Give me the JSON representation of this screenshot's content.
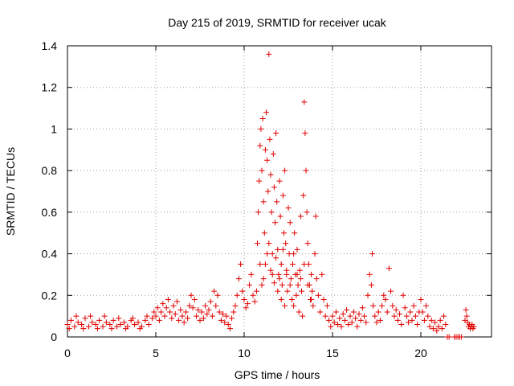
{
  "chart_data": {
    "type": "scatter",
    "title": "Day 215 of 2019, SRMTID for receiver ucak",
    "xlabel": "GPS time / hours",
    "ylabel": "SRMTID / TECUs",
    "xlim": [
      0,
      24
    ],
    "ylim": [
      0,
      1.4
    ],
    "xticks": [
      0,
      5,
      10,
      15,
      20
    ],
    "xtick_labels": [
      "0",
      "5",
      "10",
      "15",
      "20"
    ],
    "yticks": [
      0,
      0.2,
      0.4,
      0.6,
      0.8,
      1,
      1.2,
      1.4
    ],
    "ytick_labels": [
      "0",
      "0.2",
      "0.4",
      "0.6",
      "0.8",
      "1",
      "1.2",
      "1.4"
    ],
    "grid": true,
    "marker": "+",
    "series": [
      {
        "name": "SRMTID",
        "color": "#e00000",
        "points": [
          [
            0.0,
            0.06
          ],
          [
            0.2,
            0.08
          ],
          [
            0.4,
            0.05
          ],
          [
            0.6,
            0.07
          ],
          [
            0.8,
            0.06
          ],
          [
            1.0,
            0.09
          ],
          [
            1.2,
            0.05
          ],
          [
            1.4,
            0.07
          ],
          [
            1.6,
            0.06
          ],
          [
            1.8,
            0.08
          ],
          [
            2.0,
            0.05
          ],
          [
            2.2,
            0.07
          ],
          [
            2.4,
            0.06
          ],
          [
            2.6,
            0.08
          ],
          [
            2.8,
            0.05
          ],
          [
            3.0,
            0.06
          ],
          [
            3.2,
            0.07
          ],
          [
            3.4,
            0.05
          ],
          [
            3.6,
            0.08
          ],
          [
            3.8,
            0.06
          ],
          [
            4.0,
            0.07
          ],
          [
            4.2,
            0.05
          ],
          [
            4.4,
            0.08
          ],
          [
            4.6,
            0.06
          ],
          [
            4.8,
            0.09
          ],
          [
            0.1,
            0.04
          ],
          [
            0.5,
            0.1
          ],
          [
            0.9,
            0.04
          ],
          [
            1.3,
            0.1
          ],
          [
            1.7,
            0.04
          ],
          [
            2.1,
            0.1
          ],
          [
            2.5,
            0.04
          ],
          [
            2.9,
            0.09
          ],
          [
            3.3,
            0.04
          ],
          [
            3.7,
            0.09
          ],
          [
            4.1,
            0.04
          ],
          [
            4.5,
            0.1
          ],
          [
            4.9,
            0.12
          ],
          [
            5.0,
            0.1
          ],
          [
            5.1,
            0.14
          ],
          [
            5.2,
            0.08
          ],
          [
            5.3,
            0.12
          ],
          [
            5.4,
            0.16
          ],
          [
            5.5,
            0.1
          ],
          [
            5.6,
            0.14
          ],
          [
            5.7,
            0.18
          ],
          [
            5.8,
            0.12
          ],
          [
            5.9,
            0.09
          ],
          [
            6.0,
            0.15
          ],
          [
            6.1,
            0.11
          ],
          [
            6.2,
            0.17
          ],
          [
            6.3,
            0.08
          ],
          [
            6.4,
            0.13
          ],
          [
            6.5,
            0.1
          ],
          [
            6.6,
            0.07
          ],
          [
            6.7,
            0.12
          ],
          [
            6.8,
            0.09
          ],
          [
            6.9,
            0.15
          ],
          [
            7.0,
            0.2
          ],
          [
            7.1,
            0.14
          ],
          [
            7.2,
            0.18
          ],
          [
            7.3,
            0.1
          ],
          [
            7.4,
            0.13
          ],
          [
            7.5,
            0.08
          ],
          [
            7.6,
            0.12
          ],
          [
            7.7,
            0.09
          ],
          [
            7.8,
            0.15
          ],
          [
            7.9,
            0.11
          ],
          [
            8.0,
            0.13
          ],
          [
            8.1,
            0.17
          ],
          [
            8.2,
            0.1
          ],
          [
            8.3,
            0.22
          ],
          [
            8.4,
            0.15
          ],
          [
            8.5,
            0.2
          ],
          [
            8.6,
            0.12
          ],
          [
            8.7,
            0.08
          ],
          [
            8.8,
            0.11
          ],
          [
            8.9,
            0.07
          ],
          [
            9.0,
            0.1
          ],
          [
            9.1,
            0.06
          ],
          [
            9.2,
            0.04
          ],
          [
            9.3,
            0.09
          ],
          [
            9.4,
            0.12
          ],
          [
            9.5,
            0.15
          ],
          [
            9.6,
            0.2
          ],
          [
            9.7,
            0.28
          ],
          [
            9.8,
            0.35
          ],
          [
            9.9,
            0.22
          ],
          [
            10.0,
            0.18
          ],
          [
            10.1,
            0.14
          ],
          [
            10.2,
            0.16
          ],
          [
            10.3,
            0.25
          ],
          [
            10.4,
            0.3
          ],
          [
            10.5,
            0.2
          ],
          [
            10.6,
            0.17
          ],
          [
            10.7,
            0.22
          ],
          [
            10.75,
            0.45
          ],
          [
            10.8,
            0.6
          ],
          [
            10.85,
            0.75
          ],
          [
            10.9,
            0.92
          ],
          [
            10.95,
            1.0
          ],
          [
            11.0,
            0.8
          ],
          [
            11.05,
            1.05
          ],
          [
            11.1,
            0.65
          ],
          [
            11.15,
            0.5
          ],
          [
            11.2,
            0.9
          ],
          [
            11.25,
            1.08
          ],
          [
            11.3,
            0.85
          ],
          [
            11.35,
            0.7
          ],
          [
            11.4,
            1.36
          ],
          [
            11.45,
            0.95
          ],
          [
            11.5,
            0.78
          ],
          [
            11.55,
            0.6
          ],
          [
            11.6,
            0.4
          ],
          [
            11.65,
            0.88
          ],
          [
            11.7,
            0.72
          ],
          [
            11.75,
            0.55
          ],
          [
            11.8,
            0.98
          ],
          [
            11.85,
            0.65
          ],
          [
            11.9,
            0.42
          ],
          [
            11.95,
            0.3
          ],
          [
            12.0,
            0.75
          ],
          [
            12.05,
            0.58
          ],
          [
            12.1,
            0.35
          ],
          [
            12.15,
            0.25
          ],
          [
            12.2,
            0.68
          ],
          [
            12.25,
            0.5
          ],
          [
            12.3,
            0.8
          ],
          [
            12.35,
            0.45
          ],
          [
            12.4,
            0.3
          ],
          [
            12.45,
            0.22
          ],
          [
            12.5,
            0.62
          ],
          [
            12.55,
            0.4
          ],
          [
            12.6,
            0.55
          ],
          [
            12.65,
            0.28
          ],
          [
            12.7,
            0.18
          ],
          [
            12.75,
            0.35
          ],
          [
            12.8,
            0.15
          ],
          [
            12.85,
            0.5
          ],
          [
            12.9,
            0.3
          ],
          [
            12.95,
            0.2
          ],
          [
            13.0,
            0.42
          ],
          [
            13.05,
            0.25
          ],
          [
            13.1,
            0.12
          ],
          [
            13.15,
            0.32
          ],
          [
            13.2,
            0.58
          ],
          [
            13.25,
            0.22
          ],
          [
            13.3,
            0.1
          ],
          [
            13.35,
            0.68
          ],
          [
            13.4,
            1.13
          ],
          [
            13.45,
            0.98
          ],
          [
            13.5,
            0.8
          ],
          [
            13.55,
            0.6
          ],
          [
            13.6,
            0.45
          ],
          [
            13.65,
            0.35
          ],
          [
            13.7,
            0.25
          ],
          [
            13.75,
            0.18
          ],
          [
            13.8,
            0.3
          ],
          [
            13.85,
            0.22
          ],
          [
            13.9,
            0.15
          ],
          [
            14.0,
            0.4
          ],
          [
            14.05,
            0.58
          ],
          [
            14.1,
            0.28
          ],
          [
            14.2,
            0.2
          ],
          [
            14.3,
            0.12
          ],
          [
            14.4,
            0.3
          ],
          [
            14.5,
            0.18
          ],
          [
            14.6,
            0.1
          ],
          [
            14.7,
            0.15
          ],
          [
            11.0,
            0.25
          ],
          [
            11.2,
            0.35
          ],
          [
            11.4,
            0.45
          ],
          [
            11.6,
            0.3
          ],
          [
            11.8,
            0.38
          ],
          [
            12.0,
            0.28
          ],
          [
            12.2,
            0.42
          ],
          [
            12.4,
            0.32
          ],
          [
            12.6,
            0.25
          ],
          [
            12.8,
            0.4
          ],
          [
            13.0,
            0.3
          ],
          [
            13.2,
            0.28
          ],
          [
            13.4,
            0.35
          ],
          [
            13.6,
            0.25
          ],
          [
            13.8,
            0.18
          ],
          [
            10.9,
            0.35
          ],
          [
            11.1,
            0.28
          ],
          [
            11.3,
            0.4
          ],
          [
            11.5,
            0.32
          ],
          [
            11.7,
            0.26
          ],
          [
            11.9,
            0.22
          ],
          [
            12.1,
            0.18
          ],
          [
            12.3,
            0.15
          ],
          [
            14.8,
            0.08
          ],
          [
            14.9,
            0.05
          ],
          [
            15.0,
            0.1
          ],
          [
            15.1,
            0.07
          ],
          [
            15.2,
            0.12
          ],
          [
            15.3,
            0.06
          ],
          [
            15.4,
            0.09
          ],
          [
            15.5,
            0.05
          ],
          [
            15.6,
            0.11
          ],
          [
            15.7,
            0.08
          ],
          [
            15.8,
            0.13
          ],
          [
            15.9,
            0.06
          ],
          [
            16.0,
            0.1
          ],
          [
            16.1,
            0.07
          ],
          [
            16.2,
            0.12
          ],
          [
            16.3,
            0.09
          ],
          [
            16.4,
            0.05
          ],
          [
            16.5,
            0.11
          ],
          [
            16.6,
            0.08
          ],
          [
            16.7,
            0.14
          ],
          [
            16.8,
            0.1
          ],
          [
            16.9,
            0.07
          ],
          [
            17.0,
            0.2
          ],
          [
            17.1,
            0.3
          ],
          [
            17.2,
            0.25
          ],
          [
            17.25,
            0.4
          ],
          [
            17.3,
            0.15
          ],
          [
            17.4,
            0.1
          ],
          [
            17.5,
            0.07
          ],
          [
            17.6,
            0.12
          ],
          [
            17.7,
            0.08
          ],
          [
            17.8,
            0.15
          ],
          [
            17.9,
            0.2
          ],
          [
            18.0,
            0.18
          ],
          [
            18.1,
            0.12
          ],
          [
            18.2,
            0.33
          ],
          [
            18.3,
            0.22
          ],
          [
            18.4,
            0.15
          ],
          [
            18.5,
            0.1
          ],
          [
            18.6,
            0.13
          ],
          [
            18.7,
            0.08
          ],
          [
            18.8,
            0.11
          ],
          [
            18.9,
            0.06
          ],
          [
            19.0,
            0.2
          ],
          [
            19.1,
            0.14
          ],
          [
            19.2,
            0.1
          ],
          [
            19.3,
            0.07
          ],
          [
            19.4,
            0.12
          ],
          [
            19.5,
            0.08
          ],
          [
            19.6,
            0.15
          ],
          [
            19.7,
            0.1
          ],
          [
            19.8,
            0.06
          ],
          [
            19.9,
            0.12
          ],
          [
            20.0,
            0.18
          ],
          [
            20.1,
            0.12
          ],
          [
            20.2,
            0.08
          ],
          [
            20.3,
            0.15
          ],
          [
            20.4,
            0.1
          ],
          [
            20.5,
            0.05
          ],
          [
            20.6,
            0.08
          ],
          [
            20.7,
            0.04
          ],
          [
            20.8,
            0.07
          ],
          [
            20.9,
            0.03
          ],
          [
            21.0,
            0.05
          ],
          [
            21.1,
            0.08
          ],
          [
            21.2,
            0.04
          ],
          [
            21.3,
            0.1
          ],
          [
            21.4,
            0.06
          ],
          [
            21.5,
            0.0
          ],
          [
            21.6,
            0.0
          ],
          [
            21.9,
            0.0
          ],
          [
            22.0,
            0.0
          ],
          [
            22.1,
            0.0
          ],
          [
            22.2,
            0.0
          ],
          [
            22.3,
            0.0
          ],
          [
            22.5,
            0.08
          ],
          [
            22.55,
            0.13
          ],
          [
            22.6,
            0.1
          ],
          [
            22.65,
            0.07
          ],
          [
            22.7,
            0.05
          ],
          [
            22.75,
            0.06
          ],
          [
            22.8,
            0.04
          ],
          [
            22.85,
            0.05
          ],
          [
            22.9,
            0.06
          ],
          [
            22.95,
            0.04
          ],
          [
            23.0,
            0.05
          ]
        ]
      }
    ]
  }
}
